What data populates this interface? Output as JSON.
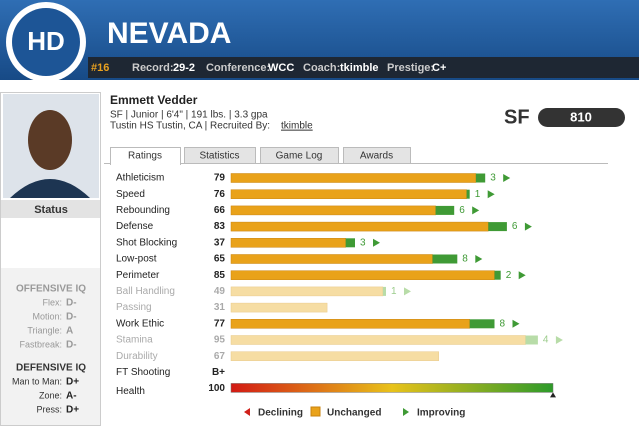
{
  "header": {
    "logo": "HD",
    "team": "NEVADA",
    "rank": "#16",
    "record_label": "Record:",
    "record": "29-2",
    "conference_label": "Conference:",
    "conference": "WCC",
    "coach_label": "Coach:",
    "coach": "tkimble",
    "prestige_label": "Prestige:",
    "prestige": "C+"
  },
  "player": {
    "name": "Emmett Vedder",
    "details": "SF | Junior | 6'4\" | 191 lbs. | 3.3 gpa",
    "hometown": "Tustin HS Tustin, CA | Recruited By:",
    "recruiter": "tkimble",
    "position": "SF",
    "overall": 810
  },
  "sidebar": {
    "status": "Status",
    "offensive_iq": {
      "title": "OFFENSIVE IQ",
      "rows": [
        [
          "Flex:",
          "D-"
        ],
        [
          "Motion:",
          "D-"
        ],
        [
          "Triangle:",
          "A"
        ],
        [
          "Fastbreak:",
          "D-"
        ]
      ]
    },
    "defensive_iq": {
      "title": "DEFENSIVE IQ",
      "rows": [
        [
          "Man to Man:",
          "D+"
        ],
        [
          "Zone:",
          "A-"
        ],
        [
          "Press:",
          "D+"
        ]
      ]
    }
  },
  "tabs": [
    "Ratings",
    "Statistics",
    "Game Log",
    "Awards"
  ],
  "ratings": [
    {
      "label": "Athleticism",
      "value": 79,
      "change": 3,
      "color": "#e9a21a"
    },
    {
      "label": "Speed",
      "value": 76,
      "change": 1,
      "color": "#e9a21a"
    },
    {
      "label": "Rebounding",
      "value": 66,
      "change": 6,
      "color": "#e9a21a"
    },
    {
      "label": "Defense",
      "value": 83,
      "change": 6,
      "color": "#e9a21a"
    },
    {
      "label": "Shot Blocking",
      "value": 37,
      "change": 3,
      "color": "#e9a21a"
    },
    {
      "label": "Low-post",
      "value": 65,
      "change": 8,
      "color": "#e9a21a"
    },
    {
      "label": "Perimeter",
      "value": 85,
      "change": 2,
      "color": "#e9a21a"
    },
    {
      "label": "Ball Handling",
      "value": 49,
      "change": 1,
      "color": "#f6dda3"
    },
    {
      "label": "Passing",
      "value": 31,
      "change": null,
      "color": "#f6dda3"
    },
    {
      "label": "Work Ethic",
      "value": 77,
      "change": 8,
      "color": "#e9a21a"
    },
    {
      "label": "Stamina",
      "value": 95,
      "change": 4,
      "color": "#f6dda3"
    },
    {
      "label": "Durability",
      "value": 67,
      "change": null,
      "color": "#f6dda3"
    }
  ],
  "ft_shooting": {
    "label": "FT Shooting",
    "value": "B+"
  },
  "health": {
    "label": "Health",
    "value": 100
  },
  "legend": [
    "Declining",
    "Unchanged",
    "Improving"
  ]
}
